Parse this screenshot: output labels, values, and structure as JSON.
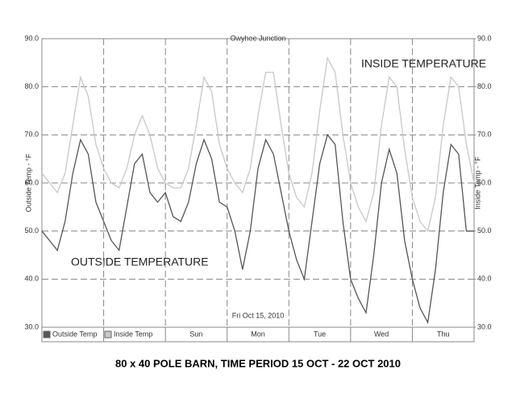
{
  "chart_data": {
    "type": "line",
    "title": "Owyhee Junction",
    "caption": "80 x 40 POLE BARN, TIME PERIOD 15 OCT - 22 OCT 2010",
    "y_label": "Outside Temp - °F",
    "y2_label": "Inside Temp - °F",
    "annotations": [
      "INSIDE TEMPERATURE",
      "OUTSIDE TEMPERATURE",
      "Fri Oct 15, 2010"
    ],
    "x": [
      0,
      0.125,
      0.25,
      0.375,
      0.5,
      0.625,
      0.75,
      0.875,
      1,
      1.125,
      1.25,
      1.375,
      1.5,
      1.625,
      1.75,
      1.875,
      2,
      2.125,
      2.25,
      2.375,
      2.5,
      2.625,
      2.75,
      2.875,
      3,
      3.125,
      3.25,
      3.375,
      3.5,
      3.625,
      3.75,
      3.875,
      4,
      4.125,
      4.25,
      4.375,
      4.5,
      4.625,
      4.75,
      4.875,
      5,
      5.125,
      5.25,
      5.375,
      5.5,
      5.625,
      5.75,
      5.875,
      6,
      6.125,
      6.25,
      6.375,
      6.5,
      6.625,
      6.75,
      6.875,
      7
    ],
    "xlim": [
      0,
      7
    ],
    "xticks": [
      {
        "value": 2.5,
        "label": "Sun"
      },
      {
        "value": 3.5,
        "label": "Mon"
      },
      {
        "value": 4.5,
        "label": "Tue"
      },
      {
        "value": 5.5,
        "label": "Wed"
      },
      {
        "value": 6.5,
        "label": "Thu"
      }
    ],
    "xgrid": [
      1,
      2,
      3,
      4,
      5,
      6
    ],
    "ylim": [
      30,
      90
    ],
    "yticks": [
      {
        "value": 30,
        "label": "30.0"
      },
      {
        "value": 40,
        "label": "40.0"
      },
      {
        "value": 50,
        "label": "50.0"
      },
      {
        "value": 60,
        "label": "60.0"
      },
      {
        "value": 70,
        "label": "70.0"
      },
      {
        "value": 80,
        "label": "80.0"
      },
      {
        "value": 90,
        "label": "90.0"
      }
    ],
    "y2lim": [
      30,
      90
    ],
    "y2ticks": [
      {
        "value": 30,
        "label": "30.0"
      },
      {
        "value": 40,
        "label": "40.0"
      },
      {
        "value": 50,
        "label": "50.0"
      },
      {
        "value": 60,
        "label": "60.0"
      },
      {
        "value": 70,
        "label": "70.0"
      },
      {
        "value": 80,
        "label": "80.0"
      },
      {
        "value": 90,
        "label": "90.0"
      }
    ],
    "grid": true,
    "series": [
      {
        "name": "Outside Temp",
        "color": "#555555",
        "values": [
          50,
          48,
          46,
          52,
          62,
          69,
          66,
          56,
          52,
          48,
          46,
          55,
          64,
          66,
          58,
          56,
          58,
          53,
          52,
          56,
          64,
          69,
          65,
          56,
          55,
          50,
          42,
          50,
          63,
          69,
          66,
          58,
          50,
          44,
          40,
          52,
          64,
          70,
          68,
          52,
          40,
          36,
          33,
          45,
          60,
          67,
          62,
          48,
          40,
          34,
          31,
          42,
          58,
          68,
          66,
          50,
          50
        ]
      },
      {
        "name": "Inside Temp",
        "color": "#c8c8c8",
        "axis": "y2",
        "values": [
          62,
          60,
          58,
          62,
          72,
          82,
          78,
          68,
          63,
          60,
          59,
          63,
          70,
          74,
          70,
          63,
          60,
          59,
          59,
          63,
          72,
          82,
          79,
          68,
          63,
          60,
          58,
          63,
          74,
          83,
          83,
          72,
          62,
          57,
          55,
          62,
          75,
          86,
          83,
          70,
          60,
          55,
          52,
          58,
          72,
          82,
          80,
          67,
          57,
          52,
          50,
          57,
          72,
          82,
          80,
          68,
          60
        ]
      }
    ]
  }
}
